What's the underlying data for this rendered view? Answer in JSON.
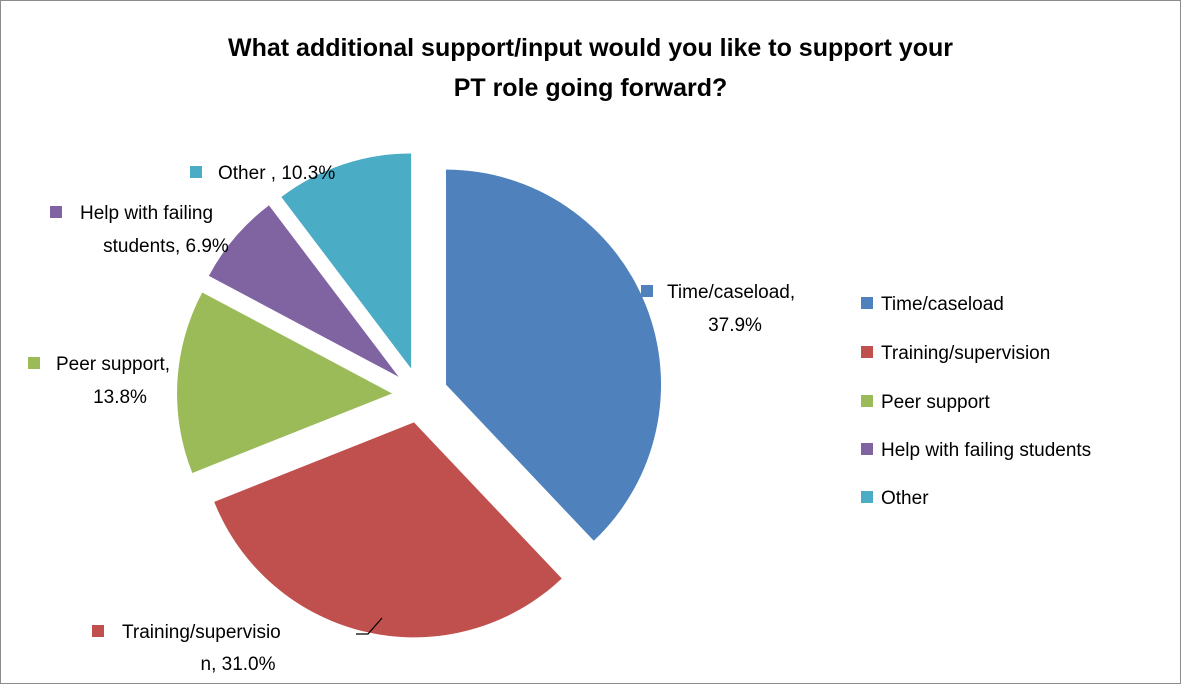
{
  "chart_data": {
    "type": "pie",
    "title": "What additional support/input would you like to support your PT role going forward?",
    "title_lines": [
      "What additional support/input would you like to support your",
      "PT role going forward?"
    ],
    "slices": [
      {
        "name": "Time/caseload",
        "value": 37.9,
        "label_lines": [
          "Time/caseload,",
          "37.9%"
        ],
        "color": "#4f81bd"
      },
      {
        "name": "Training/supervision",
        "value": 31.0,
        "label_lines": [
          "Training/supervisio",
          "n, 31.0%"
        ],
        "color": "#c0504d"
      },
      {
        "name": "Peer support",
        "value": 13.8,
        "label_lines": [
          "Peer support,",
          "13.8%"
        ],
        "color": "#9bbb59"
      },
      {
        "name": "Help with failing students",
        "value": 6.9,
        "label_lines": [
          "Help with failing",
          "students, 6.9%"
        ],
        "color": "#8064a2"
      },
      {
        "name": "Other",
        "value": 10.3,
        "label_lines": [
          "Other , 10.3%"
        ],
        "color": "#4bacc6"
      }
    ],
    "legend": {
      "position": "right",
      "items": [
        "Time/caseload",
        "Training/supervision",
        "Peer support",
        "Help with failing students",
        "Other"
      ]
    },
    "exploded": true
  }
}
